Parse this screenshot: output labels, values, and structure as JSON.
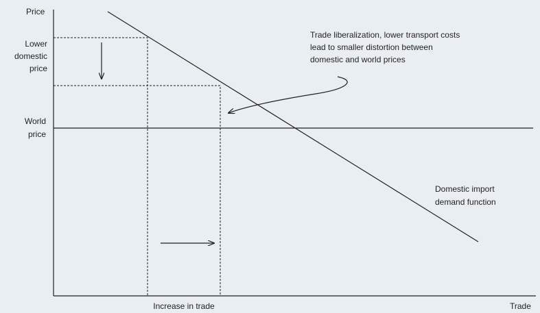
{
  "axes": {
    "y_label": "Price",
    "x_label": "Trade"
  },
  "labels": {
    "lower_domestic_price": [
      "Lower",
      "domestic",
      "price"
    ],
    "world_price": [
      "World",
      "price"
    ],
    "annotation": [
      "Trade liberalization, lower transport costs",
      "lead to smaller distortion between",
      "domestic and world prices"
    ],
    "demand": [
      "Domestic import",
      "demand function"
    ],
    "increase": "Increase in trade"
  }
}
